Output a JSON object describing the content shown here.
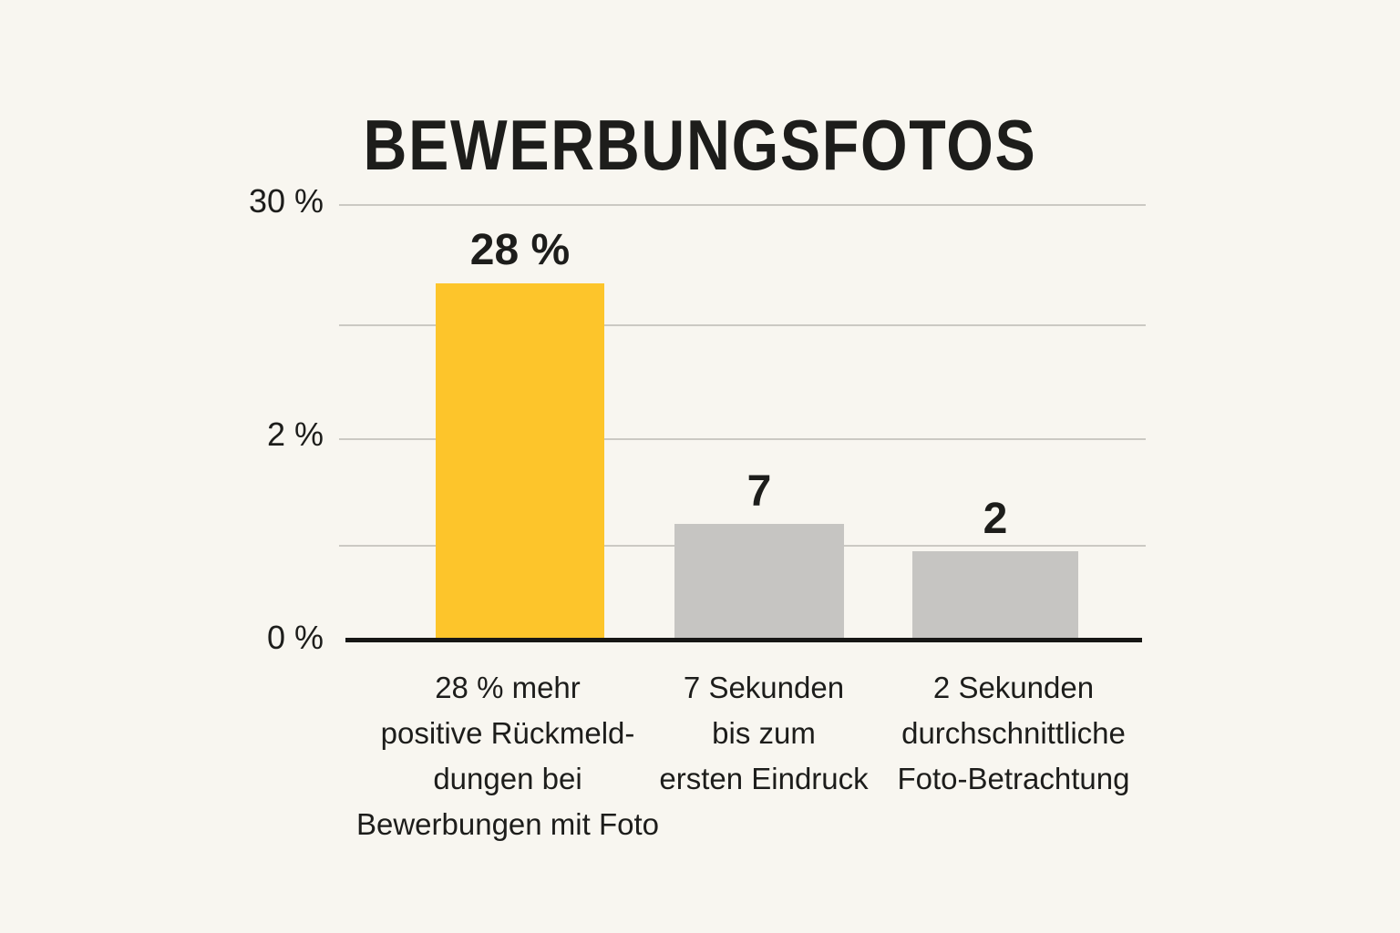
{
  "colors": {
    "background": "#F8F6F0",
    "accent_yellow": "#FDC52B",
    "bar_gray": "#C6C5C2",
    "text": "#1D1D1B",
    "gridline": "#CBC9C3",
    "axis": "#171715"
  },
  "chart_data": {
    "type": "bar",
    "title": "BEWERBUNGSFOTOS",
    "ylim": [
      0,
      30
    ],
    "grid": true,
    "legend": "none",
    "y_ticks": [
      "30 %",
      "2 %",
      "0 %"
    ],
    "categories": [
      "28 % mehr positive Rückmeld- dungen bei Bewerbungen mit Foto",
      "7 Sekunden bis zum ersten Eindruck",
      "2 Sekunden durchschnittliche Foto-Betrachtung"
    ],
    "values": [
      28,
      7,
      2
    ],
    "bars": [
      {
        "value": 28,
        "value_label": "28 %",
        "color": "#FDC52B",
        "category_lines": [
          "28 % mehr",
          "positive Rückmeld-",
          "dungen bei",
          "Bewerbungen mit Foto"
        ]
      },
      {
        "value": 7,
        "value_label": "7",
        "color": "#C6C5C2",
        "category_lines": [
          "7 Sekunden",
          "bis zum",
          "ersten Eindruck"
        ]
      },
      {
        "value": 2,
        "value_label": "2",
        "color": "#C6C5C2",
        "category_lines": [
          "2 Sekunden",
          "durchschnittliche",
          "Foto-Betrachtung"
        ]
      }
    ]
  }
}
